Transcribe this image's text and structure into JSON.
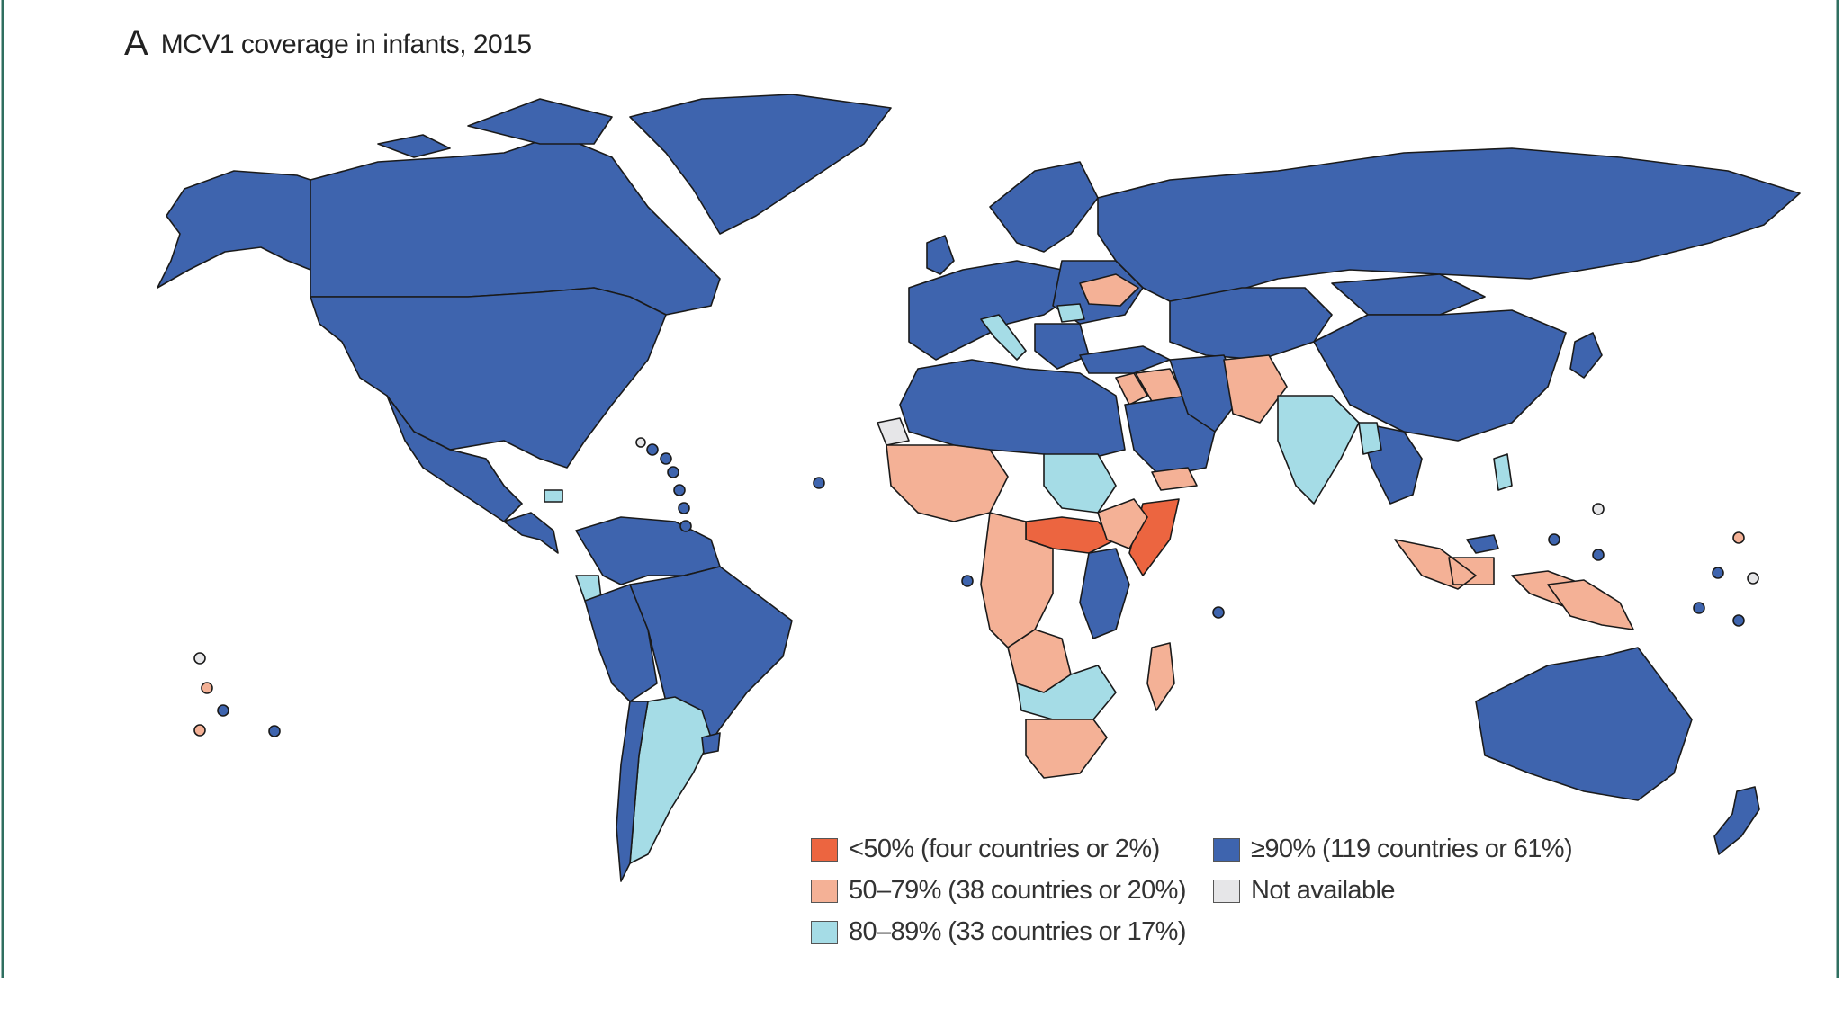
{
  "figure": {
    "panel_label": "A",
    "title": "MCV1 coverage in infants, 2015"
  },
  "colors": {
    "border_line": "#1a1a1a",
    "frame": "#2f6f60",
    "ocean": "#ffffff"
  },
  "legend": [
    {
      "id": "lt50",
      "label": "<50% (four countries or 2%)",
      "color": "#ec6540"
    },
    {
      "id": "r50_79",
      "label": "50–79% (38 countries or 20%)",
      "color": "#f4b196"
    },
    {
      "id": "r80_89",
      "label": "80–89% (33 countries or 17%)",
      "color": "#a5dce6"
    },
    {
      "id": "ge90",
      "label": "≥90% (119 countries or 61%)",
      "color": "#3e64ae"
    },
    {
      "id": "na",
      "label": "Not available",
      "color": "#e6e6e8"
    }
  ],
  "chart_data": {
    "type": "choropleth",
    "title": "MCV1 coverage in infants, 2015",
    "categories": [
      {
        "label": "<50% (four countries or 2%)",
        "countries": 4,
        "percent": 2
      },
      {
        "label": "50–79% (38 countries or 20%)",
        "countries": 38,
        "percent": 20
      },
      {
        "label": "80–89% (33 countries or 17%)",
        "countries": 33,
        "percent": 17
      },
      {
        "label": "≥90% (119 countries or 61%)",
        "countries": 119,
        "percent": 61
      },
      {
        "label": "Not available"
      }
    ]
  }
}
